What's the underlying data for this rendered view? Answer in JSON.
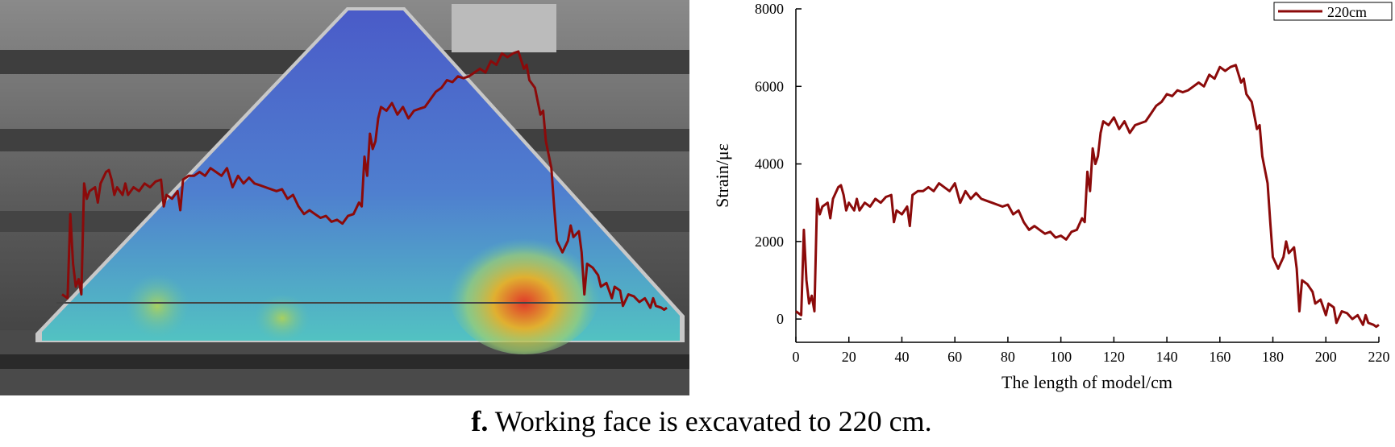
{
  "chart_data": {
    "type": "line",
    "ylabel": "Strain/με",
    "xlabel": "The length of model/cm",
    "caption_label": "f.",
    "caption_text": "Working face is excavated to 220 cm.",
    "xlim": [
      0,
      220
    ],
    "xticks": [
      0,
      20,
      40,
      60,
      80,
      100,
      120,
      140,
      160,
      180,
      200,
      220
    ],
    "ylim": [
      -600,
      8000
    ],
    "yticks": [
      0,
      2000,
      4000,
      6000,
      8000
    ],
    "legend": "upper right",
    "x": [
      0,
      1,
      2,
      3,
      4,
      5,
      6,
      7,
      8,
      9,
      10,
      12,
      13,
      14,
      16,
      17,
      18,
      19,
      20,
      22,
      23,
      24,
      26,
      28,
      30,
      32,
      34,
      36,
      37,
      38,
      40,
      42,
      43,
      44,
      46,
      48,
      50,
      52,
      54,
      56,
      58,
      60,
      62,
      64,
      66,
      68,
      70,
      72,
      74,
      76,
      78,
      80,
      82,
      84,
      86,
      88,
      90,
      92,
      94,
      96,
      98,
      100,
      102,
      104,
      106,
      108,
      109,
      110,
      111,
      112,
      113,
      114,
      115,
      116,
      118,
      120,
      122,
      124,
      126,
      128,
      130,
      132,
      134,
      136,
      138,
      140,
      142,
      144,
      146,
      148,
      150,
      152,
      154,
      156,
      158,
      160,
      162,
      164,
      166,
      168,
      169,
      170,
      172,
      174,
      175,
      176,
      178,
      179,
      180,
      182,
      184,
      185,
      186,
      188,
      189,
      190,
      191,
      193,
      195,
      196,
      198,
      200,
      201,
      203,
      204,
      206,
      208,
      210,
      212,
      214,
      215,
      216,
      218,
      219,
      220
    ],
    "series": [
      {
        "name": "220cm",
        "color": "#8b0a0a",
        "values": [
          200,
          150,
          100,
          2300,
          1000,
          400,
          600,
          200,
          3100,
          2700,
          2900,
          3000,
          2600,
          3100,
          3400,
          3450,
          3200,
          2800,
          3000,
          2800,
          3100,
          2800,
          3000,
          2900,
          3100,
          3000,
          3150,
          3200,
          2500,
          2800,
          2700,
          2900,
          2400,
          3200,
          3300,
          3300,
          3400,
          3300,
          3500,
          3400,
          3300,
          3500,
          3000,
          3300,
          3100,
          3250,
          3100,
          3050,
          3000,
          2950,
          2900,
          2950,
          2700,
          2800,
          2500,
          2300,
          2400,
          2300,
          2200,
          2250,
          2100,
          2150,
          2050,
          2250,
          2300,
          2600,
          2500,
          3800,
          3300,
          4400,
          4000,
          4200,
          4800,
          5100,
          5000,
          5200,
          4900,
          5100,
          4800,
          5000,
          5050,
          5100,
          5300,
          5500,
          5600,
          5800,
          5750,
          5900,
          5850,
          5900,
          6000,
          6100,
          6000,
          6300,
          6200,
          6500,
          6400,
          6500,
          6550,
          6100,
          6200,
          5800,
          5600,
          4900,
          5000,
          4200,
          3500,
          2500,
          1600,
          1300,
          1600,
          2000,
          1700,
          1850,
          1300,
          200,
          1000,
          900,
          700,
          400,
          500,
          100,
          400,
          300,
          -100,
          200,
          150,
          0,
          100,
          -150,
          100,
          -100,
          -150,
          -200,
          -150
        ]
      }
    ]
  }
}
